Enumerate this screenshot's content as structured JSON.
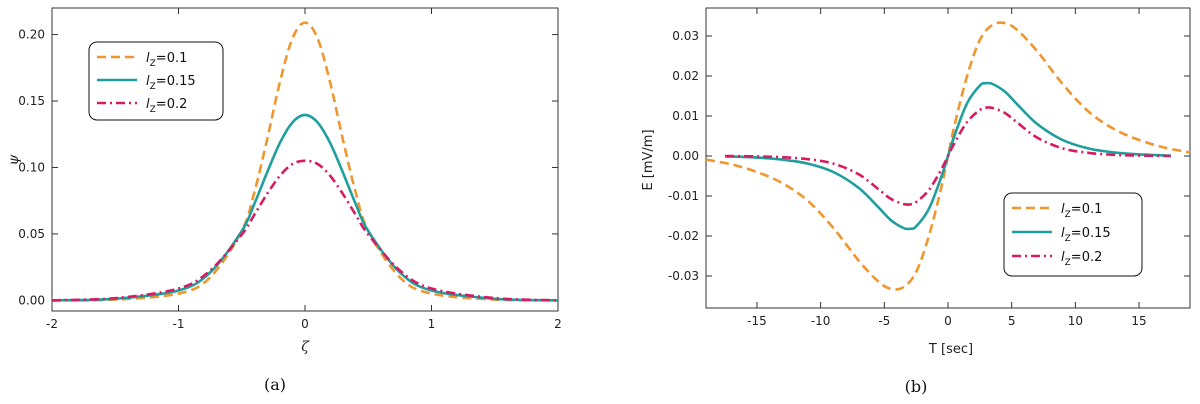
{
  "chart_data": [
    {
      "type": "line",
      "caption": "(a)",
      "xlabel": "ζ",
      "ylabel": "ψ",
      "xlim": [
        -2,
        2
      ],
      "ylim": [
        -0.008,
        0.22
      ],
      "xticks": [
        -2,
        -1,
        0,
        1,
        2
      ],
      "xtick_labels": [
        "-2",
        "-1",
        "0",
        "1",
        "2"
      ],
      "yticks": [
        0.0,
        0.05,
        0.1,
        0.15,
        0.2
      ],
      "ytick_labels": [
        "0.00",
        "0.05",
        "0.10",
        "0.15",
        "0.20"
      ],
      "x": [
        -2.0,
        -1.5,
        -1.0,
        -0.75,
        -0.5,
        -0.4,
        -0.3,
        -0.2,
        -0.1,
        0.0,
        0.1,
        0.2,
        0.3,
        0.4,
        0.5,
        0.75,
        1.0,
        1.5,
        2.0
      ],
      "series": [
        {
          "name": "l_z=0.1",
          "legend_main": "l",
          "legend_sub": "Z",
          "legend_value": "=0.1",
          "color": "#f0962e",
          "dash": "9,5",
          "values": [
            0.0,
            0.0006,
            0.0051,
            0.0173,
            0.0522,
            0.0815,
            0.1208,
            0.1635,
            0.197,
            0.209,
            0.197,
            0.1635,
            0.1208,
            0.0815,
            0.0522,
            0.0173,
            0.0051,
            0.0006,
            0.0
          ]
        },
        {
          "name": "l_z=0.15",
          "legend_main": "l",
          "legend_sub": "Z",
          "legend_value": "=0.15",
          "color": "#1f9e9e",
          "dash": "",
          "values": [
            0.0,
            0.0012,
            0.0074,
            0.021,
            0.0521,
            0.0727,
            0.0961,
            0.1182,
            0.1338,
            0.1395,
            0.1338,
            0.1182,
            0.0961,
            0.0727,
            0.0521,
            0.021,
            0.0074,
            0.0012,
            0.0
          ]
        },
        {
          "name": "l_z=0.2",
          "legend_main": "l",
          "legend_sub": "Z",
          "legend_value": "=0.2",
          "color": "#d81b60",
          "dash": "9,4,2,4",
          "values": [
            0.0,
            0.0017,
            0.0089,
            0.0225,
            0.0495,
            0.0645,
            0.08,
            0.0936,
            0.1026,
            0.105,
            0.1026,
            0.0936,
            0.08,
            0.0645,
            0.0495,
            0.0225,
            0.0089,
            0.0017,
            0.0
          ]
        }
      ]
    },
    {
      "type": "line",
      "caption": "(b)",
      "xlabel": "T [sec]",
      "ylabel": "E [mV/m]",
      "xlim": [
        -19,
        19
      ],
      "ylim": [
        -0.038,
        0.037
      ],
      "xticks": [
        -15,
        -10,
        -5,
        0,
        5,
        10,
        15
      ],
      "xtick_labels": [
        "-15",
        "-10",
        "-5",
        "0",
        "5",
        "10",
        "15"
      ],
      "yticks": [
        -0.03,
        -0.02,
        -0.01,
        0.0,
        0.01,
        0.02,
        0.03
      ],
      "ytick_labels": [
        "-0.03",
        "-0.02",
        "-0.01",
        "0.00",
        "0.01",
        "0.02",
        "0.03"
      ],
      "series": [
        {
          "name": "l_z=0.1",
          "legend_main": "l",
          "legend_sub": "Z",
          "legend_value": "=0.1",
          "color": "#f0962e",
          "dash": "9,5",
          "x": [
            -19,
            -17,
            -15,
            -13,
            -11,
            -9,
            -7,
            -5.5,
            -4.5,
            -3.5,
            -2.5,
            -1.5,
            -0.5,
            0,
            0.5,
            1.5,
            2.5,
            3.5,
            4.5,
            5.5,
            7,
            9,
            11,
            13,
            15,
            17,
            19
          ],
          "values": [
            -0.0009,
            -0.0021,
            -0.004,
            -0.0068,
            -0.0112,
            -0.018,
            -0.0262,
            -0.0313,
            -0.0332,
            -0.0328,
            -0.029,
            -0.02,
            -0.0075,
            0.0,
            0.0075,
            0.02,
            0.029,
            0.0328,
            0.0332,
            0.0313,
            0.0262,
            0.018,
            0.0112,
            0.0068,
            0.004,
            0.0021,
            0.0009
          ]
        },
        {
          "name": "l_z=0.15",
          "legend_main": "l",
          "legend_sub": "Z",
          "legend_value": "=0.15",
          "color": "#1f9e9e",
          "dash": "",
          "x": [
            -17.5,
            -15,
            -13,
            -11,
            -9,
            -7,
            -5.5,
            -4.5,
            -3.5,
            -3,
            -2.5,
            -1.5,
            -0.5,
            0,
            0.5,
            1.5,
            2.5,
            3,
            3.5,
            4.5,
            5.5,
            7,
            9,
            11,
            13,
            15,
            17.5
          ],
          "values": [
            -0.0001,
            -0.0004,
            -0.0009,
            -0.0019,
            -0.004,
            -0.008,
            -0.0127,
            -0.016,
            -0.018,
            -0.0182,
            -0.0176,
            -0.0132,
            -0.005,
            0.0,
            0.005,
            0.0132,
            0.0176,
            0.0182,
            0.018,
            0.016,
            0.0127,
            0.008,
            0.004,
            0.0019,
            0.0009,
            0.0004,
            0.0001
          ]
        },
        {
          "name": "l_z=0.2",
          "legend_main": "l",
          "legend_sub": "Z",
          "legend_value": "=0.2",
          "color": "#d81b60",
          "dash": "9,4,2,4",
          "x": [
            -17.5,
            -15,
            -13,
            -11,
            -9,
            -7,
            -5.5,
            -4.5,
            -3.5,
            -3,
            -2.5,
            -1.5,
            -0.5,
            0,
            0.5,
            1.5,
            2.5,
            3,
            3.5,
            4.5,
            5.5,
            7,
            9,
            11,
            13,
            15,
            17.5
          ],
          "values": [
            0.0,
            -0.0001,
            -0.0003,
            -0.0008,
            -0.0019,
            -0.0046,
            -0.0082,
            -0.0107,
            -0.012,
            -0.0121,
            -0.0115,
            -0.0085,
            -0.0032,
            0.0,
            0.0032,
            0.0085,
            0.0115,
            0.0121,
            0.012,
            0.0107,
            0.0082,
            0.0046,
            0.0019,
            0.0008,
            0.0003,
            0.0001,
            0.0
          ]
        }
      ]
    }
  ]
}
